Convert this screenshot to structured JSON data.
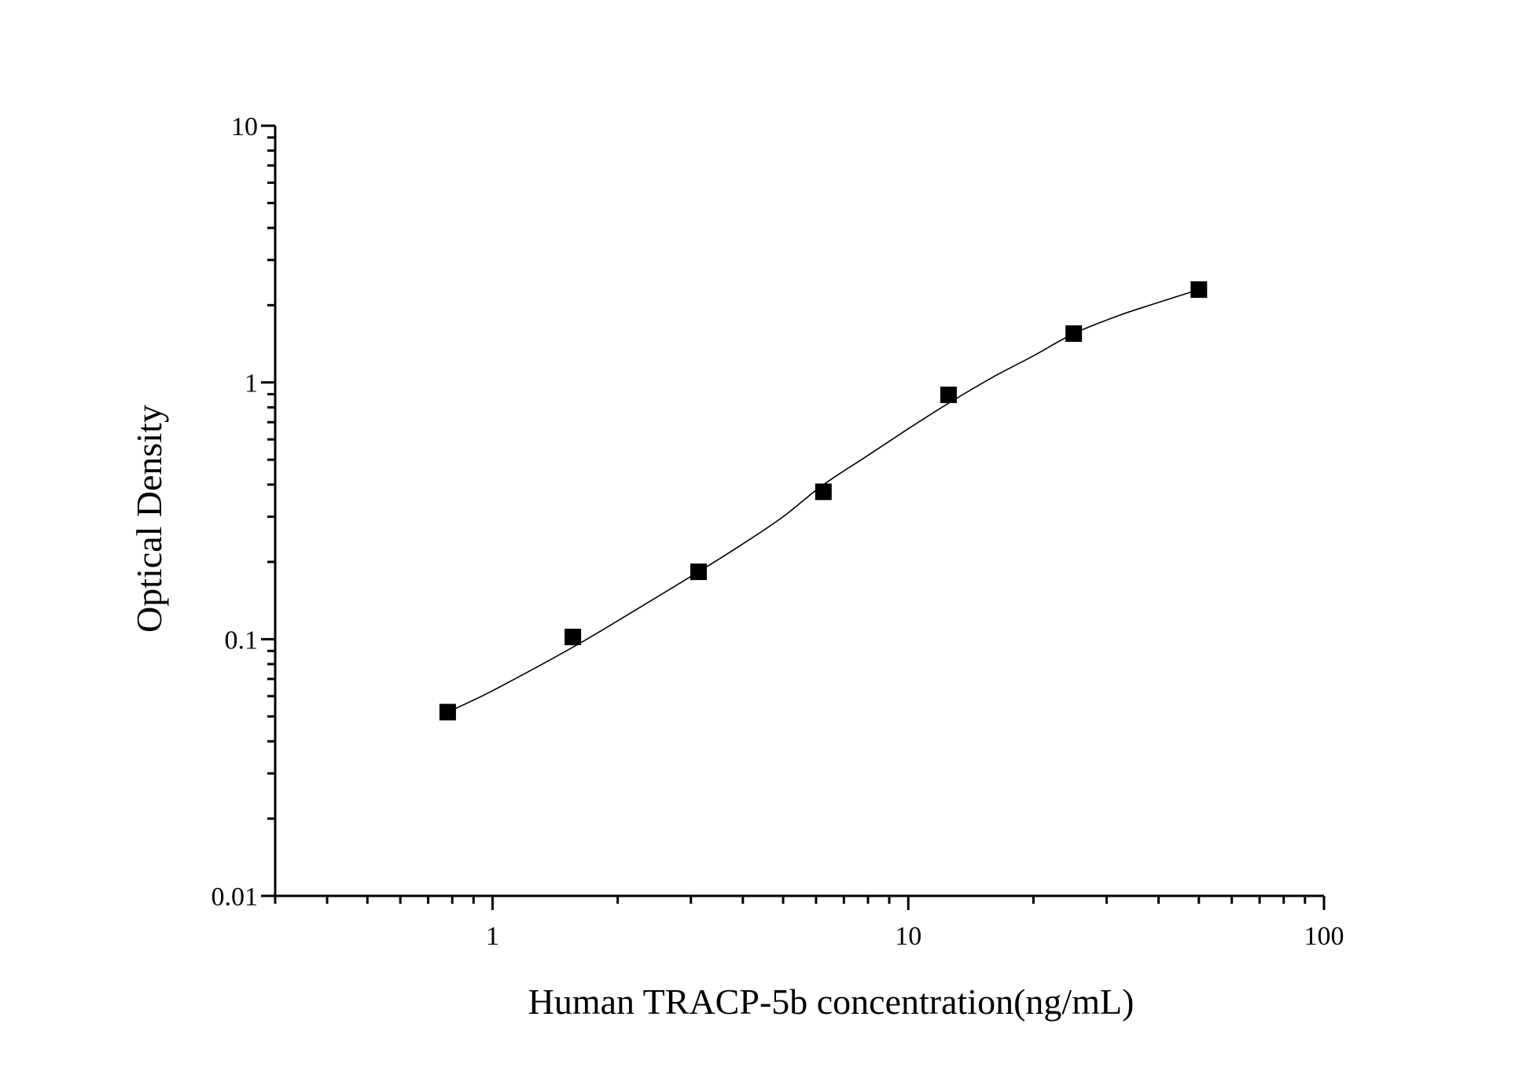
{
  "chart_data": {
    "type": "scatter",
    "title": "",
    "xlabel": "Human TRACP-5b concentration(ng/mL)",
    "ylabel": "Optical Density",
    "x_scale": "log",
    "y_scale": "log",
    "xlim": [
      0.3,
      100
    ],
    "ylim": [
      0.01,
      10
    ],
    "x_ticks": [
      {
        "value": 1,
        "label": "1"
      },
      {
        "value": 10,
        "label": "10"
      },
      {
        "value": 100,
        "label": "100"
      }
    ],
    "y_ticks": [
      {
        "value": 0.01,
        "label": "0.01"
      },
      {
        "value": 0.1,
        "label": "0.1"
      },
      {
        "value": 1,
        "label": "1"
      },
      {
        "value": 10,
        "label": "10"
      }
    ],
    "grid": false,
    "series": [
      {
        "type": "scatter",
        "marker": "square",
        "color": "#000000",
        "points": [
          {
            "x": 0.78,
            "y": 0.052
          },
          {
            "x": 1.56,
            "y": 0.102
          },
          {
            "x": 3.13,
            "y": 0.183
          },
          {
            "x": 6.25,
            "y": 0.375
          },
          {
            "x": 12.5,
            "y": 0.895
          },
          {
            "x": 25,
            "y": 1.55
          },
          {
            "x": 50,
            "y": 2.3
          }
        ]
      },
      {
        "type": "line",
        "style": "fitted-curve",
        "color": "#000000",
        "points": [
          {
            "x": 0.78,
            "y": 0.052
          },
          {
            "x": 1.0,
            "y": 0.063
          },
          {
            "x": 1.56,
            "y": 0.093
          },
          {
            "x": 2.0,
            "y": 0.118
          },
          {
            "x": 3.13,
            "y": 0.183
          },
          {
            "x": 4.0,
            "y": 0.235
          },
          {
            "x": 5.0,
            "y": 0.3
          },
          {
            "x": 6.25,
            "y": 0.4
          },
          {
            "x": 8.0,
            "y": 0.52
          },
          {
            "x": 10.0,
            "y": 0.66
          },
          {
            "x": 12.5,
            "y": 0.83
          },
          {
            "x": 16.0,
            "y": 1.05
          },
          {
            "x": 20.0,
            "y": 1.27
          },
          {
            "x": 25.0,
            "y": 1.55
          },
          {
            "x": 32.0,
            "y": 1.82
          },
          {
            "x": 40.0,
            "y": 2.05
          },
          {
            "x": 50.0,
            "y": 2.3
          }
        ]
      }
    ]
  }
}
